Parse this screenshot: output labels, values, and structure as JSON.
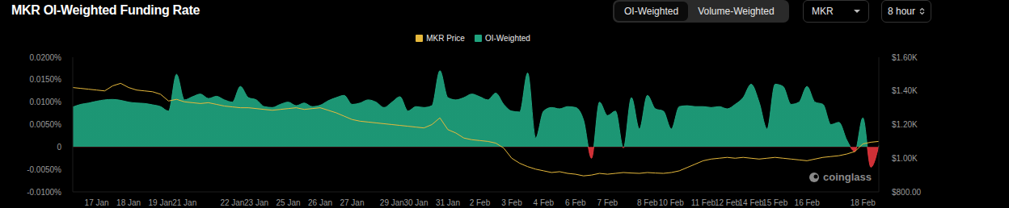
{
  "header": {
    "controls": [
      "OI-Weighted",
      "Volume-Weighted"
    ],
    "active": "OI-Weighted",
    "symbol": "MKR",
    "interval": "8 hour"
  },
  "watermark": "coinglass",
  "chart_data": {
    "type": "area",
    "title": "MKR OI-Weighted Funding Rate",
    "legend": "top",
    "grid": false,
    "categories": [
      null,
      null,
      null,
      "17 Jan",
      null,
      null,
      null,
      "18 Jan",
      null,
      null,
      null,
      "19 Jan",
      null,
      null,
      "21 Jan",
      null,
      null,
      null,
      null,
      null,
      "22 Jan",
      null,
      null,
      "23 Jan",
      null,
      null,
      null,
      "25 Jan",
      null,
      null,
      null,
      "26 Jan",
      null,
      null,
      null,
      "27 Jan",
      null,
      null,
      null,
      null,
      "29 Jan",
      null,
      null,
      "30 Jan",
      null,
      null,
      null,
      "31 Jan",
      null,
      null,
      null,
      "2 Feb",
      null,
      null,
      null,
      "3 Feb",
      null,
      null,
      null,
      "4 Feb",
      null,
      null,
      null,
      "6 Feb",
      null,
      null,
      null,
      "7 Feb",
      null,
      null,
      null,
      null,
      "8 Feb",
      null,
      null,
      "10 Feb",
      null,
      null,
      null,
      "11 Feb",
      null,
      null,
      "12 Feb",
      null,
      null,
      "14 Feb",
      null,
      null,
      "15 Feb",
      null,
      null,
      null,
      "16 Feb",
      null,
      null,
      null,
      null,
      null,
      null,
      "18 Feb",
      null,
      null
    ],
    "series": [
      {
        "name": "MKR Price",
        "type": "line",
        "axis": "y2",
        "color": "#e6b93c",
        "values": [
          1420,
          1415,
          1410,
          1405,
          1400,
          1430,
          1445,
          1420,
          1405,
          1400,
          1395,
          1380,
          1340,
          1350,
          1335,
          1330,
          1325,
          1330,
          1320,
          1310,
          1305,
          1300,
          1300,
          1295,
          1290,
          1285,
          1290,
          1295,
          1300,
          1290,
          1295,
          1300,
          1285,
          1270,
          1250,
          1230,
          1220,
          1215,
          1210,
          1205,
          1200,
          1195,
          1190,
          1185,
          1180,
          1200,
          1240,
          1170,
          1150,
          1120,
          1110,
          1105,
          1100,
          1090,
          1060,
          1000,
          970,
          950,
          935,
          925,
          915,
          920,
          910,
          905,
          895,
          900,
          910,
          905,
          910,
          915,
          912,
          910,
          915,
          912,
          910,
          915,
          925,
          945,
          965,
          985,
          995,
          1000,
          1005,
          1000,
          1005,
          1000,
          995,
          1000,
          1005,
          1000,
          995,
          990,
          985,
          995,
          1005,
          1010,
          1015,
          1025,
          1040,
          1085,
          1095,
          1100
        ]
      },
      {
        "name": "OI-Weighted",
        "type": "area",
        "color": "#1fa37e",
        "values": [
          0.0089,
          0.0095,
          0.0098,
          0.0102,
          0.0105,
          0.0106,
          0.0104,
          0.01,
          0.0098,
          0.0097,
          0.0094,
          0.009,
          0.008,
          0.0162,
          0.0105,
          0.0112,
          0.0118,
          0.0108,
          0.0113,
          0.0105,
          0.01,
          0.0135,
          0.011,
          0.0105,
          0.009,
          0.0088,
          0.0095,
          0.01,
          0.0092,
          0.0098,
          0.009,
          0.0093,
          0.0103,
          0.011,
          0.0115,
          0.0095,
          0.0098,
          0.0105,
          0.01,
          0.0088,
          0.01,
          0.0112,
          0.008,
          0.009,
          0.0088,
          0.0092,
          0.017,
          0.011,
          0.0105,
          0.011,
          0.0118,
          0.0112,
          0.0105,
          0.012,
          0.0095,
          0.008,
          0.0078,
          0.0165,
          0.002,
          0.008,
          0.0088,
          0.0085,
          0.009,
          0.0088,
          0.006,
          -0.0025,
          0.01,
          0.007,
          0.008,
          -0.0002,
          0.011,
          0.004,
          0.0115,
          0.0085,
          0.008,
          0.004,
          0.009,
          0.0092,
          0.009,
          0.009,
          0.0088,
          0.009,
          0.0085,
          0.0095,
          0.011,
          0.014,
          0.01,
          0.004,
          0.014,
          0.0135,
          0.0095,
          0.01,
          0.0135,
          0.01,
          0.0095,
          0.005,
          0.0055,
          0.0015,
          -0.001,
          0.0065,
          -0.0045,
          0.0003
        ]
      }
    ],
    "ylim": [
      -0.01,
      0.02
    ],
    "yticks": [
      {
        "value": -0.01,
        "label": "-0.0100%"
      },
      {
        "value": -0.005,
        "label": "-0.0050%"
      },
      0,
      {
        "value": 0.005,
        "label": "0.0050%"
      },
      {
        "value": 0.01,
        "label": "0.0100%"
      },
      {
        "value": 0.015,
        "label": "0.0150%"
      },
      {
        "value": 0.02,
        "label": "0.0200%"
      }
    ],
    "y2lim": [
      800,
      1600
    ],
    "y2ticks": [
      {
        "value": 800,
        "label": "$800.00"
      },
      {
        "value": 1000,
        "label": "$1.00K"
      },
      {
        "value": 1200,
        "label": "$1.20K"
      },
      {
        "value": 1400,
        "label": "$1.40K"
      },
      {
        "value": 1600,
        "label": "$1.60K"
      }
    ]
  }
}
